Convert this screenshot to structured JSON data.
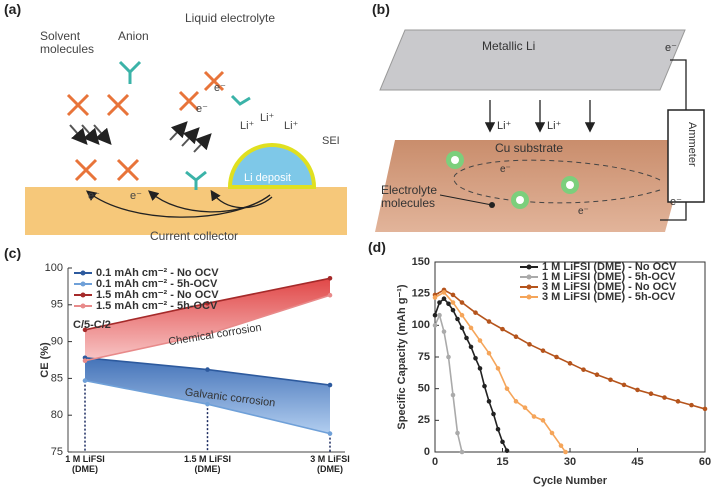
{
  "panel_a": {
    "label": "(a)",
    "texts": [
      "Liquid electrolyte",
      "Solvent\nmolecules",
      "Anion",
      "e⁻",
      "e⁻",
      "Li⁺",
      "Li⁺",
      "Li⁺",
      "SEI",
      "Li deposit",
      "e⁻",
      "e⁻",
      "Current collector"
    ]
  },
  "panel_b": {
    "label": "(b)",
    "texts": [
      "Metallic Li",
      "e⁻",
      "Li⁺",
      "Li⁺",
      "Ammeter",
      "Cu substrate",
      "e⁻",
      "Electrolyte\nmolecules",
      "e⁻",
      "e⁻"
    ]
  },
  "chart_data": [
    {
      "type": "line",
      "panel_label": "(c)",
      "ylabel": "CE (%)",
      "annotations": [
        "C/5-C/2",
        "Chemical corrosion",
        "Galvanic corrosion"
      ],
      "categories": [
        "1 M LiFSI\n(DME)",
        "1.5 M LiFSI\n(DME)",
        "3 M LiFSI\n(DME)"
      ],
      "series": [
        {
          "name": "0.1 mAh cm⁻² - No OCV",
          "color": "#2d5a9e",
          "values": [
            87.8,
            86.2,
            84.1
          ]
        },
        {
          "name": "0.1 mAh cm⁻² - 5h-OCV",
          "color": "#6fa0d8",
          "values": [
            84.7,
            81.5,
            77.5
          ]
        },
        {
          "name": "1.5 mAh cm⁻² - No OCV",
          "color": "#a52a2a",
          "values": [
            91.6,
            95.2,
            98.6
          ]
        },
        {
          "name": "1.5 mAh cm⁻² - 5h-OCV",
          "color": "#e88a8a",
          "values": [
            87.4,
            91.0,
            96.3
          ]
        }
      ],
      "ylim": [
        75,
        100
      ],
      "yticks": [
        75,
        80,
        85,
        90,
        95,
        100
      ]
    },
    {
      "type": "line",
      "panel_label": "(d)",
      "ylabel": "Specific Capacity (mAh g⁻¹)",
      "xlabel": "Cycle Number",
      "series": [
        {
          "name": "1 M LiFSI (DME) - No OCV",
          "color": "#222222",
          "x": [
            0,
            1,
            2,
            3,
            4,
            5,
            6,
            7,
            8,
            9,
            10,
            11,
            12,
            13,
            14,
            15,
            16
          ],
          "values": [
            108,
            118,
            121,
            117,
            112,
            105,
            98,
            90,
            83,
            74,
            66,
            52,
            40,
            30,
            18,
            8,
            1
          ]
        },
        {
          "name": "1 M LiFSI (DME) - 5h-OCV",
          "color": "#aaaaaa",
          "x": [
            0,
            1,
            2,
            3,
            4,
            5,
            6
          ],
          "values": [
            100,
            108,
            95,
            75,
            45,
            15,
            0
          ]
        },
        {
          "name": "3 M LiFSI (DME) - No OCV",
          "color": "#b5541c",
          "x": [
            0,
            2,
            4,
            6,
            9,
            12,
            15,
            18,
            21,
            24,
            27,
            30,
            33,
            36,
            39,
            42,
            45,
            48,
            51,
            54,
            57,
            60
          ],
          "values": [
            124,
            128,
            124,
            118,
            110,
            103,
            97,
            91,
            85,
            80,
            75,
            70,
            65,
            61,
            57,
            53,
            49,
            46,
            43,
            40,
            37,
            34
          ]
        },
        {
          "name": "3 M LiFSI (DME) - 5h-OCV",
          "color": "#f5a55a",
          "x": [
            0,
            2,
            4,
            6,
            8,
            10,
            12,
            14,
            16,
            18,
            20,
            22,
            24,
            26,
            28,
            29
          ],
          "values": [
            122,
            126,
            118,
            108,
            98,
            88,
            78,
            66,
            50,
            40,
            35,
            28,
            25,
            15,
            5,
            0
          ]
        }
      ],
      "xlim": [
        0,
        60
      ],
      "xticks": [
        0,
        15,
        30,
        45,
        60
      ],
      "ylim": [
        0,
        150
      ],
      "yticks": [
        0,
        25,
        50,
        75,
        100,
        125,
        150
      ],
      "legend": "upper right"
    }
  ]
}
